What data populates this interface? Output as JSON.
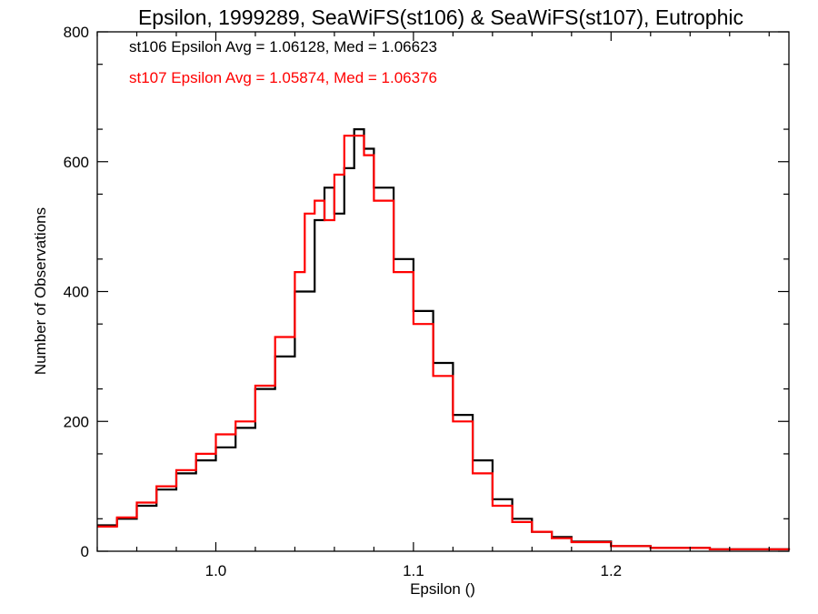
{
  "chart_data": {
    "type": "line",
    "title": "Epsilon, 1999289, SeaWiFS(st106) & SeaWiFS(st107), Eutrophic",
    "xlabel": "Epsilon ()",
    "ylabel": "Number of Observations",
    "xlim": [
      0.94,
      1.29
    ],
    "ylim": [
      0,
      800
    ],
    "x_ticks": [
      1.0,
      1.1,
      1.2
    ],
    "x_tick_labels": [
      "1.0",
      "1.1",
      "1.2"
    ],
    "y_ticks": [
      0,
      200,
      400,
      600,
      800
    ],
    "y_tick_labels": [
      "0",
      "200",
      "400",
      "600",
      "800"
    ],
    "grid": false,
    "legend": [
      {
        "text": "st106 Epsilon Avg = 1.06128, Med = 1.06623",
        "color": "#000000"
      },
      {
        "text": "st107 Epsilon Avg = 1.05874, Med = 1.06376",
        "color": "#ff0000"
      }
    ],
    "series": [
      {
        "color": "#000000",
        "x": [
          0.94,
          0.95,
          0.96,
          0.97,
          0.98,
          0.99,
          1.0,
          1.01,
          1.02,
          1.03,
          1.04,
          1.05,
          1.055,
          1.06,
          1.065,
          1.07,
          1.075,
          1.08,
          1.09,
          1.1,
          1.11,
          1.12,
          1.13,
          1.14,
          1.15,
          1.16,
          1.17,
          1.18,
          1.2,
          1.22,
          1.25,
          1.29
        ],
        "values": [
          40,
          50,
          70,
          95,
          120,
          140,
          160,
          190,
          250,
          300,
          400,
          510,
          560,
          520,
          590,
          650,
          620,
          560,
          450,
          370,
          290,
          210,
          140,
          80,
          50,
          30,
          22,
          15,
          8,
          5,
          3,
          2
        ]
      },
      {
        "color": "#ff0000",
        "x": [
          0.94,
          0.95,
          0.96,
          0.97,
          0.98,
          0.99,
          1.0,
          1.01,
          1.02,
          1.03,
          1.04,
          1.045,
          1.05,
          1.055,
          1.06,
          1.065,
          1.07,
          1.075,
          1.08,
          1.09,
          1.1,
          1.11,
          1.12,
          1.13,
          1.14,
          1.15,
          1.16,
          1.17,
          1.18,
          1.2,
          1.22,
          1.25,
          1.29
        ],
        "values": [
          38,
          52,
          75,
          100,
          125,
          150,
          180,
          200,
          255,
          330,
          430,
          520,
          540,
          510,
          580,
          640,
          640,
          610,
          540,
          430,
          350,
          270,
          200,
          120,
          70,
          45,
          30,
          20,
          14,
          8,
          5,
          3,
          2
        ]
      }
    ]
  }
}
